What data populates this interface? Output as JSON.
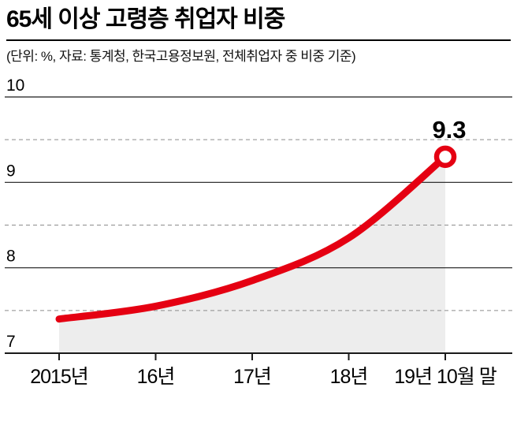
{
  "header": {
    "title": "65세 이상 고령층 취업자 비중",
    "subtitle": "(단위: %, 자료: 통계청, 한국고용정보원, 전체취업자 중 비중 기준)"
  },
  "chart_data": {
    "type": "line",
    "title": "65세 이상 고령층 취업자 비중",
    "categories": [
      "2015년",
      "16년",
      "17년",
      "18년",
      "19년 10월 말"
    ],
    "values": [
      7.4,
      7.55,
      7.85,
      8.35,
      9.3
    ],
    "unit": "%",
    "ylim": [
      7,
      10
    ],
    "y_ticks": [
      10,
      9,
      8,
      7
    ],
    "y_minor_ticks": [
      9.5,
      8.5,
      7.5
    ],
    "grid": true,
    "area_fill": true,
    "end_label": "9.3",
    "legend": "none",
    "colors": {
      "line": "#e50012",
      "marker_fill": "#ffffff",
      "area": "#ededed",
      "grid_solid": "#1a1a1a",
      "grid_dashed": "#8c8c8c",
      "text": "#000000"
    }
  }
}
